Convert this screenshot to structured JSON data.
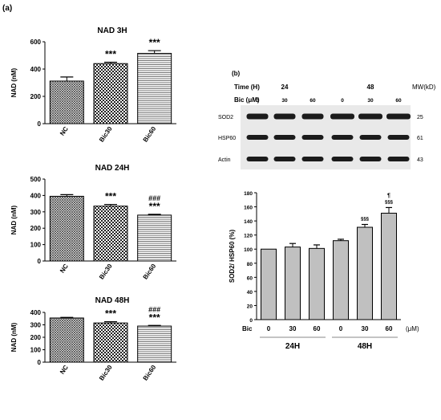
{
  "panel_a_label": "(a)",
  "panel_b_label": "(b)",
  "chart_data": [
    {
      "type": "bar",
      "title": "NAD 3H",
      "ylabel": "NAD (nM)",
      "categories": [
        "NC",
        "Bic30",
        "Bic60"
      ],
      "values": [
        312,
        440,
        515
      ],
      "errors": [
        30,
        10,
        20
      ],
      "ylim": [
        0,
        600
      ],
      "yticks": [
        "0",
        "200",
        "400",
        "600"
      ],
      "annotations": [
        "",
        "***",
        "***"
      ],
      "annotations2": [
        "",
        "",
        ""
      ],
      "patterns": [
        "crosshatch",
        "checker",
        "hlines"
      ]
    },
    {
      "type": "bar",
      "title": "NAD 24H",
      "ylabel": "NAD (nM)",
      "categories": [
        "NC",
        "Bic30",
        "Bic60"
      ],
      "values": [
        395,
        335,
        280
      ],
      "errors": [
        10,
        10,
        5
      ],
      "ylim": [
        0,
        500
      ],
      "yticks": [
        "0",
        "100",
        "200",
        "300",
        "400",
        "500"
      ],
      "annotations": [
        "",
        "***",
        "***"
      ],
      "annotations2": [
        "",
        "",
        "###"
      ],
      "patterns": [
        "crosshatch",
        "checker",
        "hlines"
      ]
    },
    {
      "type": "bar",
      "title": "NAD 48H",
      "ylabel": "NAD (nM)",
      "categories": [
        "NC",
        "Bic30",
        "Bic60"
      ],
      "values": [
        355,
        315,
        290
      ],
      "errors": [
        5,
        10,
        5
      ],
      "ylim": [
        0,
        400
      ],
      "yticks": [
        "0",
        "100",
        "200",
        "300",
        "400"
      ],
      "annotations": [
        "",
        "***",
        "***"
      ],
      "annotations2": [
        "",
        "",
        "###"
      ],
      "patterns": [
        "crosshatch",
        "checker",
        "hlines"
      ]
    },
    {
      "type": "bar",
      "title": "",
      "ylabel": "SOD2/ HSP60 (%)",
      "categories": [
        "0",
        "30",
        "60",
        "0",
        "30",
        "60"
      ],
      "values": [
        100,
        103,
        101,
        112,
        131,
        151
      ],
      "errors": [
        0,
        5,
        5,
        2,
        4,
        8
      ],
      "ylim": [
        0,
        180
      ],
      "yticks": [
        "0",
        "20",
        "40",
        "60",
        "80",
        "100",
        "120",
        "140",
        "160",
        "180"
      ],
      "annotations": [
        "",
        "",
        "",
        "",
        "§§§",
        "§§§"
      ],
      "annotations2": [
        "",
        "",
        "",
        "",
        "",
        "¶"
      ],
      "xprefix": "Bic",
      "xunit": "(μM)",
      "groups": [
        "24H",
        "48H"
      ],
      "color": "#c0c0c0"
    }
  ],
  "blot": {
    "time_label": "Time (H)",
    "bic_label": "Bic (μM)",
    "mw_label": "MW(kD)",
    "times": [
      "24",
      "48"
    ],
    "doses": [
      "0",
      "30",
      "60",
      "0",
      "30",
      "60"
    ],
    "rows": [
      {
        "name": "SOD2",
        "mw": "25"
      },
      {
        "name": "HSP60",
        "mw": "61"
      },
      {
        "name": "Actin",
        "mw": "43"
      }
    ]
  }
}
